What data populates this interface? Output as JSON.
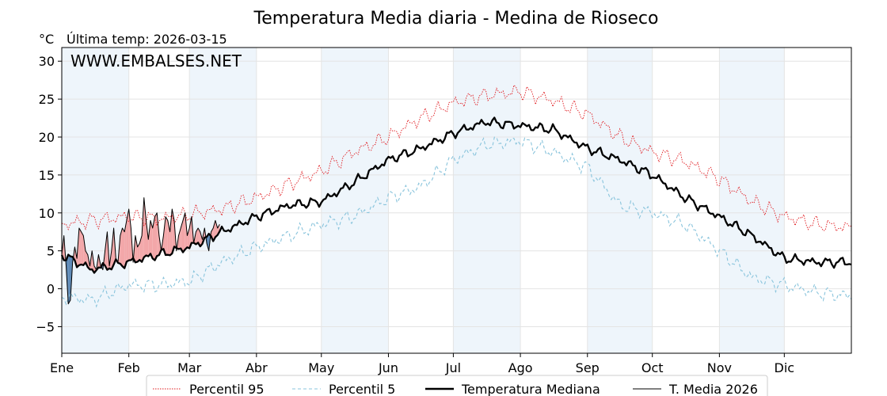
{
  "chart_data": {
    "type": "line",
    "title": "Temperatura Media diaria - Medina de Rioseco",
    "unit_label": "°C",
    "subtitle": "Última temp: 2026-03-15",
    "watermark": "WWW.EMBALSES.NET",
    "ylim": [
      -8.5,
      31.8
    ],
    "yticks": [
      -5,
      0,
      5,
      10,
      15,
      20,
      25,
      30
    ],
    "xlim": [
      1,
      366
    ],
    "x_months": [
      {
        "label": "Ene",
        "day": 1
      },
      {
        "label": "Feb",
        "day": 32
      },
      {
        "label": "Mar",
        "day": 60
      },
      {
        "label": "Abr",
        "day": 91
      },
      {
        "label": "May",
        "day": 121
      },
      {
        "label": "Jun",
        "day": 152
      },
      {
        "label": "Jul",
        "day": 182
      },
      {
        "label": "Ago",
        "day": 213
      },
      {
        "label": "Sep",
        "day": 244
      },
      {
        "label": "Oct",
        "day": 274
      },
      {
        "label": "Nov",
        "day": 305
      },
      {
        "label": "Dic",
        "day": 335
      }
    ],
    "shaded_month_bands": [
      [
        1,
        32
      ],
      [
        60,
        91
      ],
      [
        121,
        152
      ],
      [
        182,
        213
      ],
      [
        244,
        274
      ],
      [
        305,
        335
      ]
    ],
    "grid": true,
    "legend_position": "bottom-center",
    "colors": {
      "title": "#2e74a8",
      "p95": "#e0191e",
      "p5": "#89c4dc",
      "median": "#000000",
      "current": "#000000",
      "above_fill": "#f3a7a9",
      "below_fill": "#5b87b5",
      "band": "#eef5fb",
      "grid": "#e4e4e4"
    },
    "series": [
      {
        "name": "Percentil 95",
        "style": "dotted",
        "x": [
          1,
          15,
          32,
          46,
          60,
          75,
          91,
          106,
          121,
          136,
          152,
          167,
          182,
          197,
          213,
          228,
          244,
          259,
          274,
          289,
          305,
          320,
          335,
          350,
          366
        ],
        "values": [
          8.5,
          9.0,
          9.5,
          9.2,
          9.8,
          10.5,
          12.0,
          13.8,
          15.5,
          18.0,
          20.0,
          22.5,
          24.5,
          25.5,
          26.0,
          24.8,
          23.0,
          20.0,
          18.0,
          16.8,
          14.5,
          11.5,
          9.5,
          8.5,
          8.0
        ]
      },
      {
        "name": "Percentil 5",
        "style": "dashed",
        "x": [
          1,
          15,
          32,
          46,
          60,
          75,
          91,
          106,
          121,
          136,
          152,
          167,
          182,
          197,
          213,
          228,
          244,
          259,
          274,
          289,
          305,
          320,
          335,
          350,
          366
        ],
        "values": [
          -1.0,
          -1.5,
          0.5,
          0.5,
          1.0,
          3.5,
          5.5,
          7.0,
          8.5,
          9.5,
          12.0,
          13.5,
          17.0,
          19.0,
          19.5,
          18.0,
          16.0,
          11.0,
          10.0,
          8.5,
          5.0,
          1.5,
          0.5,
          -0.5,
          -1.0
        ]
      },
      {
        "name": "Temperatura Mediana",
        "style": "solid-thick",
        "x": [
          1,
          15,
          32,
          46,
          60,
          75,
          91,
          106,
          121,
          136,
          152,
          167,
          182,
          197,
          213,
          228,
          244,
          259,
          274,
          289,
          305,
          320,
          335,
          350,
          366
        ],
        "values": [
          4.5,
          2.5,
          3.5,
          4.5,
          5.5,
          7.5,
          9.5,
          11.0,
          11.5,
          14.0,
          17.0,
          18.5,
          20.5,
          22.0,
          21.5,
          21.0,
          18.5,
          17.0,
          15.0,
          12.0,
          9.5,
          7.0,
          4.0,
          3.5,
          3.5
        ]
      },
      {
        "name": "T. Media 2026",
        "style": "solid-thin",
        "x": [
          1,
          2,
          3,
          4,
          5,
          6,
          7,
          8,
          9,
          10,
          11,
          12,
          13,
          14,
          15,
          16,
          17,
          18,
          19,
          20,
          21,
          22,
          23,
          24,
          25,
          26,
          27,
          28,
          29,
          30,
          31,
          32,
          33,
          34,
          35,
          36,
          37,
          38,
          39,
          40,
          41,
          42,
          43,
          44,
          45,
          46,
          47,
          48,
          49,
          50,
          51,
          52,
          53,
          54,
          55,
          56,
          57,
          58,
          59,
          60,
          61,
          62,
          63,
          64,
          65,
          66,
          67,
          68,
          69,
          70,
          71,
          72,
          73,
          74
        ],
        "values": [
          4.5,
          7.0,
          3.0,
          -2.0,
          -1.5,
          3.5,
          5.5,
          4.0,
          8.0,
          7.5,
          7.0,
          5.0,
          4.5,
          3.0,
          5.0,
          3.0,
          2.5,
          4.5,
          3.0,
          2.5,
          5.0,
          7.5,
          3.0,
          5.0,
          8.0,
          4.0,
          3.5,
          7.0,
          8.0,
          7.5,
          9.0,
          10.5,
          8.0,
          3.5,
          7.0,
          5.5,
          6.0,
          7.0,
          12.0,
          9.0,
          6.5,
          9.0,
          8.0,
          9.5,
          10.0,
          7.0,
          5.0,
          7.0,
          9.5,
          9.0,
          7.5,
          10.5,
          9.0,
          5.0,
          7.0,
          8.0,
          9.0,
          10.0,
          7.0,
          8.0,
          9.5,
          6.0,
          7.5,
          8.0,
          7.5,
          6.5,
          8.0,
          6.0,
          5.0,
          7.5,
          8.0,
          9.0,
          8.0,
          8.5
        ]
      }
    ]
  }
}
